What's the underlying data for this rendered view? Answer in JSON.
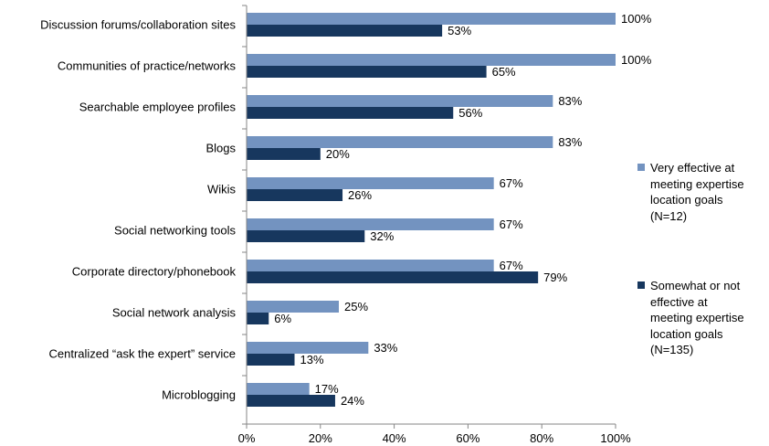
{
  "chart_data": {
    "type": "bar",
    "orientation": "horizontal",
    "categories": [
      "Discussion forums/collaboration sites",
      "Communities of practice/networks",
      "Searchable employee profiles",
      "Blogs",
      "Wikis",
      "Social networking tools",
      "Corporate directory/phonebook",
      "Social network analysis",
      "Centralized “ask the expert” service",
      "Microblogging"
    ],
    "series": [
      {
        "name": "Very effective at meeting expertise location goals (N=12)",
        "color": "#7393C0",
        "values": [
          100,
          100,
          83,
          83,
          67,
          67,
          67,
          25,
          33,
          17
        ],
        "labels": [
          "100%",
          "100%",
          "83%",
          "83%",
          "67%",
          "67%",
          "67%",
          "25%",
          "33%",
          "17%"
        ]
      },
      {
        "name": "Somewhat or not effective at meeting expertise location goals (N=135)",
        "color": "#17375E",
        "values": [
          53,
          65,
          56,
          20,
          26,
          32,
          79,
          6,
          13,
          24
        ],
        "labels": [
          "53%",
          "65%",
          "56%",
          "20%",
          "26%",
          "32%",
          "79%",
          "6%",
          "13%",
          "24%"
        ]
      }
    ],
    "xlim": [
      0,
      100
    ],
    "xticks": [
      "0%",
      "20%",
      "40%",
      "60%",
      "80%",
      "100%"
    ],
    "grid": false,
    "legend_position": "right",
    "title": "",
    "xlabel": "",
    "ylabel": ""
  },
  "legend": {
    "items": [
      {
        "lines": [
          "Very effective at",
          "meeting expertise",
          "location goals",
          "(N=12)"
        ]
      },
      {
        "lines": [
          "Somewhat or not",
          "effective at",
          "meeting expertise",
          "location goals",
          "(N=135)"
        ]
      }
    ]
  }
}
